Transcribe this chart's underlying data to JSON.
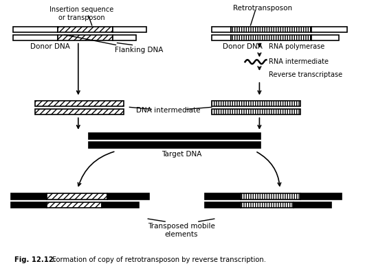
{
  "title_bold": "Fig. 12.12.",
  "title_rest": " Formation of copy of retrotransposon by reverse transcription.",
  "bg_color": "#ffffff",
  "labels": {
    "insertion_seq": "Insertion sequence\nor transposon",
    "retrotransposon": "Retrotransposon",
    "donor_dna_left": "Donor DNA",
    "flanking_dna": "Flanking DNA",
    "donor_dna_right": "Donor DNA",
    "rna_polymerase": "RNA polymerase",
    "rna_intermediate": "RNA intermediate",
    "reverse_transcriptase": "Reverse transcriptase",
    "dna_intermediate": "DNA intermediate",
    "target_dna": "Target DNA",
    "transposed": "Transposed mobile\nelements"
  }
}
